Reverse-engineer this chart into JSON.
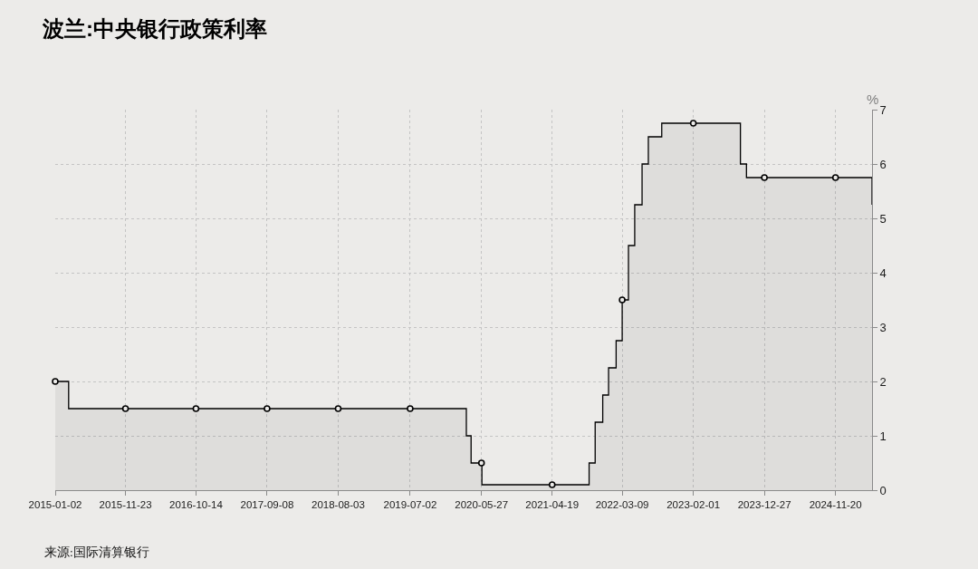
{
  "chart_data": {
    "type": "area",
    "title": "波兰:中央银行政策利率",
    "ylabel": "%",
    "annotations": [
      "来源:国际清算银行"
    ],
    "xlim": [
      "2015-01-02",
      "2025-05-08"
    ],
    "xticks": [
      "2015-01-02",
      "2015-11-23",
      "2016-10-14",
      "2017-09-08",
      "2018-08-03",
      "2019-07-02",
      "2020-05-27",
      "2021-04-19",
      "2022-03-09",
      "2023-02-01",
      "2023-12-27",
      "2024-11-20"
    ],
    "ylim": [
      0,
      7
    ],
    "yticks": [
      0,
      1,
      2,
      3,
      4,
      5,
      6,
      7
    ],
    "grid": true,
    "series": [
      {
        "color": "#000000",
        "x": [
          "2015-01-02",
          "2015-03-05",
          "2015-03-05",
          "2020-03-18",
          "2020-03-18",
          "2020-04-09",
          "2020-04-09",
          "2020-05-29",
          "2020-05-29",
          "2021-10-07",
          "2021-10-07",
          "2021-11-04",
          "2021-11-04",
          "2021-12-09",
          "2021-12-09",
          "2022-01-05",
          "2022-01-05",
          "2022-02-09",
          "2022-02-09",
          "2022-03-09",
          "2022-03-09",
          "2022-04-07",
          "2022-04-07",
          "2022-05-06",
          "2022-05-06",
          "2022-06-09",
          "2022-06-09",
          "2022-07-08",
          "2022-07-08",
          "2022-09-08",
          "2022-09-08",
          "2023-09-07",
          "2023-09-07",
          "2023-10-05",
          "2023-10-05",
          "2025-05-08",
          "2025-05-08"
        ],
        "values": [
          2,
          2,
          1.5,
          1.5,
          1,
          1,
          0.5,
          0.5,
          0.1,
          0.1,
          0.5,
          0.5,
          1.25,
          1.25,
          1.75,
          1.75,
          2.25,
          2.25,
          2.75,
          2.75,
          3.5,
          3.5,
          4.5,
          4.5,
          5.25,
          5.25,
          6,
          6,
          6.5,
          6.5,
          6.75,
          6.75,
          6,
          6,
          5.75,
          5.75,
          5.25
        ]
      },
      {
        "type": "scatter",
        "color": "#000000",
        "marker": "circle",
        "x": [
          "2015-01-02",
          "2015-11-23",
          "2016-10-14",
          "2017-09-08",
          "2018-08-03",
          "2019-07-02",
          "2020-05-27",
          "2021-04-19",
          "2022-03-09",
          "2023-02-01",
          "2023-12-27",
          "2024-11-20"
        ],
        "values": [
          2,
          1.5,
          1.5,
          1.5,
          1.5,
          1.5,
          0.5,
          0.1,
          3.5,
          6.75,
          5.75,
          5.75
        ]
      }
    ]
  }
}
